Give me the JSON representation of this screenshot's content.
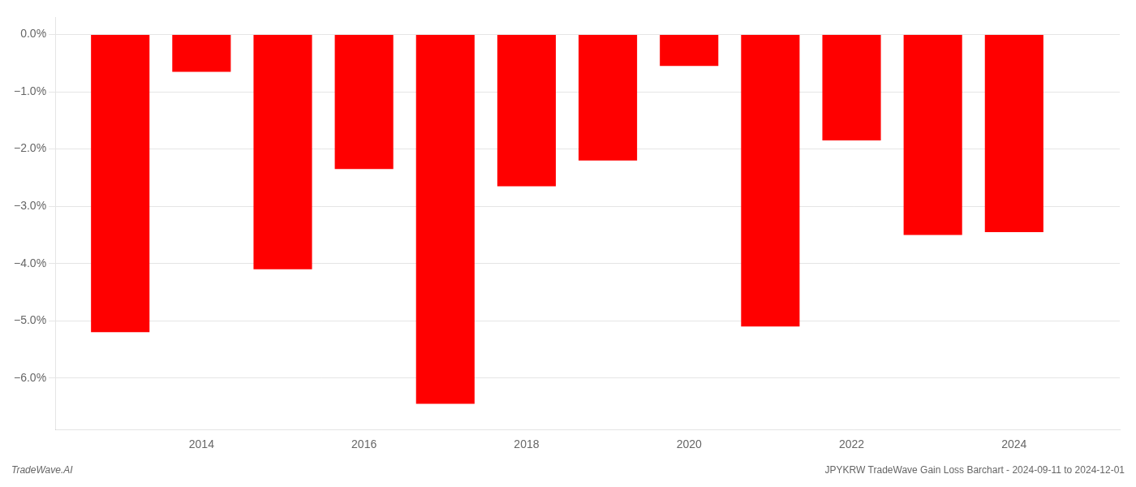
{
  "chart_data": {
    "type": "bar",
    "x": [
      2013,
      2014,
      2015,
      2016,
      2017,
      2018,
      2019,
      2020,
      2021,
      2022,
      2023,
      2024
    ],
    "values": [
      -5.2,
      -0.65,
      -4.1,
      -2.35,
      -6.45,
      -2.65,
      -2.2,
      -0.55,
      -5.1,
      -1.85,
      -3.5,
      -3.45
    ],
    "color": "#ff0000",
    "xlim": [
      2012.2,
      2025.3
    ],
    "xticks": [
      2014,
      2016,
      2018,
      2020,
      2022,
      2024
    ],
    "ylim": [
      -6.9,
      0.3
    ],
    "yticks": [
      {
        "value": 0.0,
        "label": "0.0%"
      },
      {
        "value": -1.0,
        "label": "−1.0%"
      },
      {
        "value": -2.0,
        "label": "−2.0%"
      },
      {
        "value": -3.0,
        "label": "−3.0%"
      },
      {
        "value": -4.0,
        "label": "−4.0%"
      },
      {
        "value": -5.0,
        "label": "−5.0%"
      },
      {
        "value": -6.0,
        "label": "−6.0%"
      }
    ],
    "grid": true,
    "annotations": [
      "TradeWave.AI",
      "JPYKRW TradeWave Gain Loss Barchart - 2024-09-11 to 2024-12-01"
    ]
  }
}
